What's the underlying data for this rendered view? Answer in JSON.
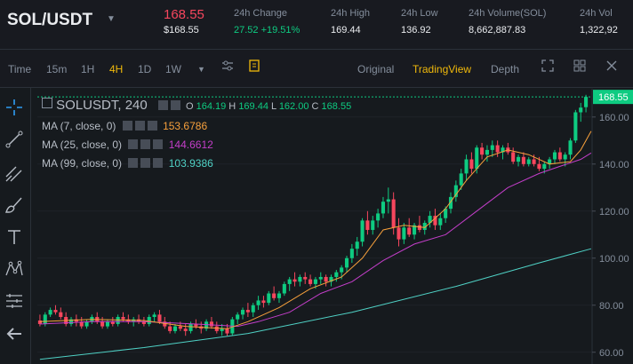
{
  "ticker": {
    "pair": "SOL/USDT",
    "last_price": "168.55",
    "last_price_usd": "$168.55",
    "stats": [
      {
        "label": "24h Change",
        "value": "27.52 +19.51%",
        "color": "#0ecb81"
      },
      {
        "label": "24h High",
        "value": "169.44"
      },
      {
        "label": "24h Low",
        "value": "136.92"
      },
      {
        "label": "24h Volume(SOL)",
        "value": "8,662,887.83"
      },
      {
        "label": "24h Vol",
        "value": "1,322,92"
      }
    ]
  },
  "toolbar": {
    "time_label": "Time",
    "intervals": [
      "15m",
      "1H",
      "4H",
      "1D",
      "1W"
    ],
    "active_interval": "4H",
    "views": [
      "Original",
      "TradingView",
      "Depth"
    ],
    "active_view": "TradingView"
  },
  "legend": {
    "symbol": "SOLUSDT, 240",
    "ohlc": {
      "o_label": "O",
      "o": "164.19",
      "h_label": "H",
      "h": "169.44",
      "l_label": "L",
      "l": "162.00",
      "c_label": "C",
      "c": "168.55"
    },
    "ma7": {
      "label": "MA (7, close, 0)",
      "value": "153.6786",
      "color": "#f7a03c"
    },
    "ma25": {
      "label": "MA (25, close, 0)",
      "value": "144.6612",
      "color": "#c33ec9"
    },
    "ma99": {
      "label": "MA (99, close, 0)",
      "value": "103.9386",
      "color": "#4fd1c5"
    }
  },
  "colors": {
    "up": "#0ecb81",
    "down": "#f6465d",
    "accent": "#f0b90b"
  },
  "icons": [
    "crosshair-icon",
    "trendline-icon",
    "fib-icon",
    "brush-icon",
    "text-icon",
    "pattern-icon",
    "measure-icon",
    "back-arrow-icon"
  ],
  "chart_data": {
    "type": "candlestick",
    "y_ticks": [
      "160.00",
      "140.00",
      "120.00",
      "100.00",
      "80.00",
      "60.00"
    ],
    "ylim": [
      55,
      172
    ],
    "price_label": "168.55",
    "candles": [
      {
        "o": 73.5,
        "h": 76,
        "l": 71,
        "c": 72
      },
      {
        "o": 72,
        "h": 77,
        "l": 71,
        "c": 76
      },
      {
        "o": 76,
        "h": 79,
        "l": 75,
        "c": 78
      },
      {
        "o": 78,
        "h": 80,
        "l": 76,
        "c": 77
      },
      {
        "o": 77,
        "h": 79,
        "l": 74,
        "c": 75
      },
      {
        "o": 75,
        "h": 77,
        "l": 71,
        "c": 72
      },
      {
        "o": 72,
        "h": 75,
        "l": 71,
        "c": 74
      },
      {
        "o": 74,
        "h": 76,
        "l": 71,
        "c": 73
      },
      {
        "o": 73,
        "h": 75,
        "l": 70,
        "c": 71
      },
      {
        "o": 71,
        "h": 74,
        "l": 70,
        "c": 73
      },
      {
        "o": 73,
        "h": 76,
        "l": 72,
        "c": 75
      },
      {
        "o": 75,
        "h": 77,
        "l": 72,
        "c": 73
      },
      {
        "o": 73,
        "h": 75,
        "l": 70,
        "c": 71
      },
      {
        "o": 71,
        "h": 74,
        "l": 70,
        "c": 73
      },
      {
        "o": 73,
        "h": 75,
        "l": 71,
        "c": 72
      },
      {
        "o": 72,
        "h": 76,
        "l": 71,
        "c": 75
      },
      {
        "o": 75,
        "h": 77,
        "l": 73,
        "c": 74
      },
      {
        "o": 74,
        "h": 76,
        "l": 72,
        "c": 73
      },
      {
        "o": 73,
        "h": 75,
        "l": 71,
        "c": 74
      },
      {
        "o": 74,
        "h": 76,
        "l": 72,
        "c": 73
      },
      {
        "o": 73,
        "h": 75,
        "l": 71,
        "c": 72
      },
      {
        "o": 72,
        "h": 76,
        "l": 71,
        "c": 75
      },
      {
        "o": 75,
        "h": 77,
        "l": 73,
        "c": 76
      },
      {
        "o": 76,
        "h": 78,
        "l": 72,
        "c": 73
      },
      {
        "o": 73,
        "h": 75,
        "l": 70,
        "c": 71
      },
      {
        "o": 71,
        "h": 73,
        "l": 68,
        "c": 69
      },
      {
        "o": 69,
        "h": 72,
        "l": 68,
        "c": 71
      },
      {
        "o": 71,
        "h": 73,
        "l": 69,
        "c": 70
      },
      {
        "o": 70,
        "h": 72,
        "l": 67,
        "c": 69
      },
      {
        "o": 69,
        "h": 73,
        "l": 68,
        "c": 72
      },
      {
        "o": 72,
        "h": 74,
        "l": 70,
        "c": 71
      },
      {
        "o": 71,
        "h": 73,
        "l": 68,
        "c": 70
      },
      {
        "o": 70,
        "h": 74,
        "l": 69,
        "c": 73
      },
      {
        "o": 73,
        "h": 75,
        "l": 70,
        "c": 71
      },
      {
        "o": 71,
        "h": 73,
        "l": 68,
        "c": 69
      },
      {
        "o": 69,
        "h": 72,
        "l": 67,
        "c": 70
      },
      {
        "o": 70,
        "h": 72,
        "l": 67,
        "c": 68
      },
      {
        "o": 68,
        "h": 75,
        "l": 67,
        "c": 74
      },
      {
        "o": 74,
        "h": 77,
        "l": 72,
        "c": 76
      },
      {
        "o": 76,
        "h": 79,
        "l": 74,
        "c": 78
      },
      {
        "o": 78,
        "h": 81,
        "l": 75,
        "c": 77
      },
      {
        "o": 77,
        "h": 81,
        "l": 75,
        "c": 80
      },
      {
        "o": 80,
        "h": 84,
        "l": 78,
        "c": 82
      },
      {
        "o": 82,
        "h": 84,
        "l": 79,
        "c": 81
      },
      {
        "o": 81,
        "h": 86,
        "l": 80,
        "c": 85
      },
      {
        "o": 85,
        "h": 88,
        "l": 82,
        "c": 83
      },
      {
        "o": 83,
        "h": 86,
        "l": 81,
        "c": 85
      },
      {
        "o": 85,
        "h": 90,
        "l": 84,
        "c": 89
      },
      {
        "o": 89,
        "h": 92,
        "l": 86,
        "c": 91
      },
      {
        "o": 91,
        "h": 94,
        "l": 88,
        "c": 90
      },
      {
        "o": 90,
        "h": 93,
        "l": 88,
        "c": 92
      },
      {
        "o": 92,
        "h": 94,
        "l": 89,
        "c": 91
      },
      {
        "o": 91,
        "h": 93,
        "l": 88,
        "c": 89
      },
      {
        "o": 89,
        "h": 92,
        "l": 87,
        "c": 91
      },
      {
        "o": 91,
        "h": 94,
        "l": 89,
        "c": 92
      },
      {
        "o": 92,
        "h": 93,
        "l": 88,
        "c": 90
      },
      {
        "o": 90,
        "h": 93,
        "l": 88,
        "c": 92
      },
      {
        "o": 92,
        "h": 95,
        "l": 90,
        "c": 94
      },
      {
        "o": 94,
        "h": 97,
        "l": 91,
        "c": 96
      },
      {
        "o": 96,
        "h": 101,
        "l": 94,
        "c": 100
      },
      {
        "o": 100,
        "h": 106,
        "l": 98,
        "c": 104
      },
      {
        "o": 104,
        "h": 109,
        "l": 101,
        "c": 107
      },
      {
        "o": 107,
        "h": 117,
        "l": 105,
        "c": 116
      },
      {
        "o": 116,
        "h": 120,
        "l": 110,
        "c": 112
      },
      {
        "o": 112,
        "h": 118,
        "l": 110,
        "c": 116
      },
      {
        "o": 116,
        "h": 121,
        "l": 113,
        "c": 119
      },
      {
        "o": 119,
        "h": 126,
        "l": 117,
        "c": 124
      },
      {
        "o": 124,
        "h": 130,
        "l": 119,
        "c": 125
      },
      {
        "o": 125,
        "h": 128,
        "l": 110,
        "c": 113
      },
      {
        "o": 113,
        "h": 117,
        "l": 105,
        "c": 108
      },
      {
        "o": 108,
        "h": 115,
        "l": 106,
        "c": 113
      },
      {
        "o": 113,
        "h": 117,
        "l": 109,
        "c": 110
      },
      {
        "o": 110,
        "h": 115,
        "l": 108,
        "c": 114
      },
      {
        "o": 114,
        "h": 118,
        "l": 111,
        "c": 112
      },
      {
        "o": 112,
        "h": 116,
        "l": 110,
        "c": 115
      },
      {
        "o": 115,
        "h": 120,
        "l": 113,
        "c": 118
      },
      {
        "o": 118,
        "h": 121,
        "l": 112,
        "c": 114
      },
      {
        "o": 114,
        "h": 119,
        "l": 112,
        "c": 117
      },
      {
        "o": 117,
        "h": 122,
        "l": 115,
        "c": 121
      },
      {
        "o": 121,
        "h": 128,
        "l": 119,
        "c": 126
      },
      {
        "o": 126,
        "h": 133,
        "l": 124,
        "c": 131
      },
      {
        "o": 131,
        "h": 138,
        "l": 129,
        "c": 136
      },
      {
        "o": 136,
        "h": 144,
        "l": 133,
        "c": 142
      },
      {
        "o": 142,
        "h": 145,
        "l": 136,
        "c": 138
      },
      {
        "o": 138,
        "h": 148,
        "l": 136,
        "c": 147
      },
      {
        "o": 147,
        "h": 149,
        "l": 142,
        "c": 144
      },
      {
        "o": 144,
        "h": 148,
        "l": 141,
        "c": 146
      },
      {
        "o": 146,
        "h": 150,
        "l": 143,
        "c": 148
      },
      {
        "o": 148,
        "h": 150,
        "l": 143,
        "c": 145
      },
      {
        "o": 145,
        "h": 148,
        "l": 142,
        "c": 147
      },
      {
        "o": 147,
        "h": 149,
        "l": 144,
        "c": 145
      },
      {
        "o": 145,
        "h": 147,
        "l": 140,
        "c": 141
      },
      {
        "o": 141,
        "h": 144,
        "l": 139,
        "c": 143
      },
      {
        "o": 143,
        "h": 145,
        "l": 139,
        "c": 140
      },
      {
        "o": 140,
        "h": 143,
        "l": 139,
        "c": 142
      },
      {
        "o": 142,
        "h": 144,
        "l": 139,
        "c": 140
      },
      {
        "o": 140,
        "h": 143,
        "l": 137,
        "c": 138
      },
      {
        "o": 138,
        "h": 141,
        "l": 136,
        "c": 140
      },
      {
        "o": 140,
        "h": 143,
        "l": 138,
        "c": 142
      },
      {
        "o": 142,
        "h": 146,
        "l": 140,
        "c": 145
      },
      {
        "o": 145,
        "h": 147,
        "l": 141,
        "c": 142
      },
      {
        "o": 142,
        "h": 145,
        "l": 139,
        "c": 144
      },
      {
        "o": 144,
        "h": 151,
        "l": 142,
        "c": 150
      },
      {
        "o": 150,
        "h": 163,
        "l": 149,
        "c": 162
      },
      {
        "o": 162,
        "h": 166,
        "l": 158,
        "c": 164
      },
      {
        "o": 164.19,
        "h": 169.44,
        "l": 162,
        "c": 168.55
      }
    ],
    "ma7": [
      [
        0,
        73
      ],
      [
        10,
        74
      ],
      [
        20,
        73.5
      ],
      [
        28,
        71
      ],
      [
        36,
        70
      ],
      [
        40,
        73
      ],
      [
        46,
        79
      ],
      [
        52,
        87
      ],
      [
        58,
        92
      ],
      [
        62,
        100
      ],
      [
        66,
        112
      ],
      [
        70,
        114
      ],
      [
        74,
        113
      ],
      [
        78,
        121
      ],
      [
        82,
        133
      ],
      [
        86,
        143
      ],
      [
        90,
        146
      ],
      [
        94,
        144
      ],
      [
        98,
        140
      ],
      [
        102,
        141
      ],
      [
        104,
        146
      ],
      [
        106,
        154
      ]
    ],
    "ma25": [
      [
        0,
        72
      ],
      [
        10,
        73
      ],
      [
        20,
        73
      ],
      [
        30,
        72
      ],
      [
        38,
        71
      ],
      [
        42,
        73
      ],
      [
        48,
        77
      ],
      [
        54,
        85
      ],
      [
        60,
        90
      ],
      [
        66,
        99
      ],
      [
        72,
        106
      ],
      [
        78,
        110
      ],
      [
        84,
        120
      ],
      [
        90,
        130
      ],
      [
        96,
        136
      ],
      [
        100,
        139
      ],
      [
        104,
        142
      ],
      [
        106,
        144.7
      ]
    ],
    "ma99": [
      [
        0,
        57
      ],
      [
        20,
        62
      ],
      [
        40,
        68
      ],
      [
        60,
        77
      ],
      [
        80,
        88
      ],
      [
        96,
        98
      ],
      [
        106,
        104
      ]
    ]
  }
}
